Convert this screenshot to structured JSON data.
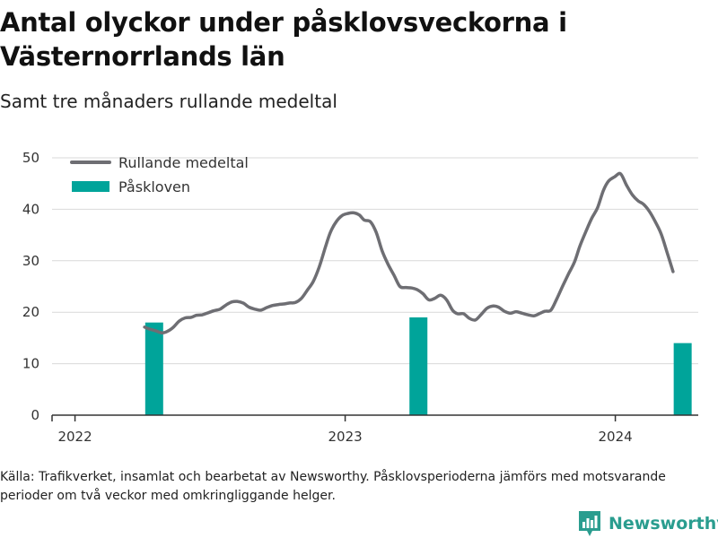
{
  "title": "Antal olyckor under påsklovsveckorna i Västernorrlands län",
  "subtitle": "Samt tre månaders rullande medeltal",
  "source": "Källa: Trafikverket, insamlat och bearbetat av Newsworthy. Påsklovsperioderna jämförs med motsvarande perioder om två veckor med omkringliggande helger.",
  "brand": {
    "name": "Newsworthy",
    "icon": "bar-chart-logo-icon"
  },
  "colors": {
    "line": "#6e6e73",
    "bar": "#00a49a",
    "grid": "#d9d9d9",
    "axis": "#333333",
    "brand": "#2a9d8f"
  },
  "chart_data": {
    "type": "bar+line",
    "x_axis": {
      "type": "date",
      "ticks": [
        "2022",
        "2023",
        "2024"
      ]
    },
    "y_axis": {
      "ticks": [
        "0",
        "10",
        "20",
        "30",
        "40",
        "50"
      ],
      "range": [
        0,
        50
      ]
    },
    "grid": "horizontal",
    "legend": {
      "position": "top-left",
      "entries": [
        "Rullande medeltal",
        "Påskloven"
      ]
    },
    "series": [
      {
        "name": "Rullande medeltal",
        "kind": "line",
        "points": [
          [
            "2022-04-05",
            17.1
          ],
          [
            "2022-04-12",
            16.7
          ],
          [
            "2022-04-20",
            16.4
          ],
          [
            "2022-04-28",
            16.0
          ],
          [
            "2022-05-06",
            16.3
          ],
          [
            "2022-05-14",
            17.1
          ],
          [
            "2022-05-22",
            18.3
          ],
          [
            "2022-05-30",
            18.9
          ],
          [
            "2022-06-07",
            19.0
          ],
          [
            "2022-06-14",
            19.4
          ],
          [
            "2022-06-22",
            19.5
          ],
          [
            "2022-06-30",
            19.9
          ],
          [
            "2022-07-08",
            20.3
          ],
          [
            "2022-07-16",
            20.6
          ],
          [
            "2022-07-24",
            21.4
          ],
          [
            "2022-08-01",
            22.0
          ],
          [
            "2022-08-08",
            22.1
          ],
          [
            "2022-08-16",
            21.8
          ],
          [
            "2022-08-24",
            21.0
          ],
          [
            "2022-09-01",
            20.6
          ],
          [
            "2022-09-09",
            20.4
          ],
          [
            "2022-09-17",
            20.9
          ],
          [
            "2022-09-25",
            21.3
          ],
          [
            "2022-10-03",
            21.5
          ],
          [
            "2022-10-10",
            21.6
          ],
          [
            "2022-10-18",
            21.8
          ],
          [
            "2022-10-26",
            21.9
          ],
          [
            "2022-11-03",
            22.7
          ],
          [
            "2022-11-11",
            24.3
          ],
          [
            "2022-11-19",
            26.0
          ],
          [
            "2022-11-27",
            28.8
          ],
          [
            "2022-12-05",
            32.5
          ],
          [
            "2022-12-12",
            35.5
          ],
          [
            "2022-12-20",
            37.6
          ],
          [
            "2022-12-28",
            38.8
          ],
          [
            "2023-01-05",
            39.2
          ],
          [
            "2023-01-13",
            39.3
          ],
          [
            "2023-01-20",
            38.9
          ],
          [
            "2023-01-27",
            37.9
          ],
          [
            "2023-02-04",
            37.6
          ],
          [
            "2023-02-12",
            35.5
          ],
          [
            "2023-02-20",
            31.9
          ],
          [
            "2023-02-28",
            29.3
          ],
          [
            "2023-03-08",
            27.2
          ],
          [
            "2023-03-16",
            25.0
          ],
          [
            "2023-03-24",
            24.8
          ],
          [
            "2023-04-01",
            24.7
          ],
          [
            "2023-04-08",
            24.4
          ],
          [
            "2023-04-16",
            23.6
          ],
          [
            "2023-04-24",
            22.4
          ],
          [
            "2023-05-02",
            22.7
          ],
          [
            "2023-05-10",
            23.3
          ],
          [
            "2023-05-18",
            22.4
          ],
          [
            "2023-05-26",
            20.4
          ],
          [
            "2023-06-02",
            19.7
          ],
          [
            "2023-06-10",
            19.7
          ],
          [
            "2023-06-18",
            18.8
          ],
          [
            "2023-06-26",
            18.5
          ],
          [
            "2023-07-04",
            19.6
          ],
          [
            "2023-07-12",
            20.8
          ],
          [
            "2023-07-20",
            21.2
          ],
          [
            "2023-07-27",
            21.0
          ],
          [
            "2023-08-04",
            20.2
          ],
          [
            "2023-08-12",
            19.8
          ],
          [
            "2023-08-20",
            20.1
          ],
          [
            "2023-08-28",
            19.8
          ],
          [
            "2023-09-05",
            19.5
          ],
          [
            "2023-09-13",
            19.3
          ],
          [
            "2023-09-20",
            19.7
          ],
          [
            "2023-09-28",
            20.2
          ],
          [
            "2023-10-06",
            20.4
          ],
          [
            "2023-10-14",
            22.6
          ],
          [
            "2023-10-22",
            25.1
          ],
          [
            "2023-10-30",
            27.5
          ],
          [
            "2023-11-07",
            29.8
          ],
          [
            "2023-11-14",
            32.8
          ],
          [
            "2023-11-22",
            35.6
          ],
          [
            "2023-11-30",
            38.2
          ],
          [
            "2023-12-08",
            40.3
          ],
          [
            "2023-12-16",
            43.7
          ],
          [
            "2023-12-23",
            45.5
          ],
          [
            "2023-12-31",
            46.3
          ],
          [
            "2024-01-08",
            46.9
          ],
          [
            "2024-01-16",
            44.7
          ],
          [
            "2024-01-24",
            42.8
          ],
          [
            "2024-02-01",
            41.6
          ],
          [
            "2024-02-08",
            41.0
          ],
          [
            "2024-02-16",
            39.6
          ],
          [
            "2024-02-24",
            37.6
          ],
          [
            "2024-03-03",
            35.2
          ],
          [
            "2024-03-11",
            31.6
          ],
          [
            "2024-03-19",
            27.9
          ]
        ]
      },
      {
        "name": "Påskloven",
        "kind": "bar",
        "bars": [
          {
            "x": "2022-04-18",
            "value": 18
          },
          {
            "x": "2023-04-10",
            "value": 19
          },
          {
            "x": "2024-04-01",
            "value": 14
          }
        ]
      }
    ]
  }
}
